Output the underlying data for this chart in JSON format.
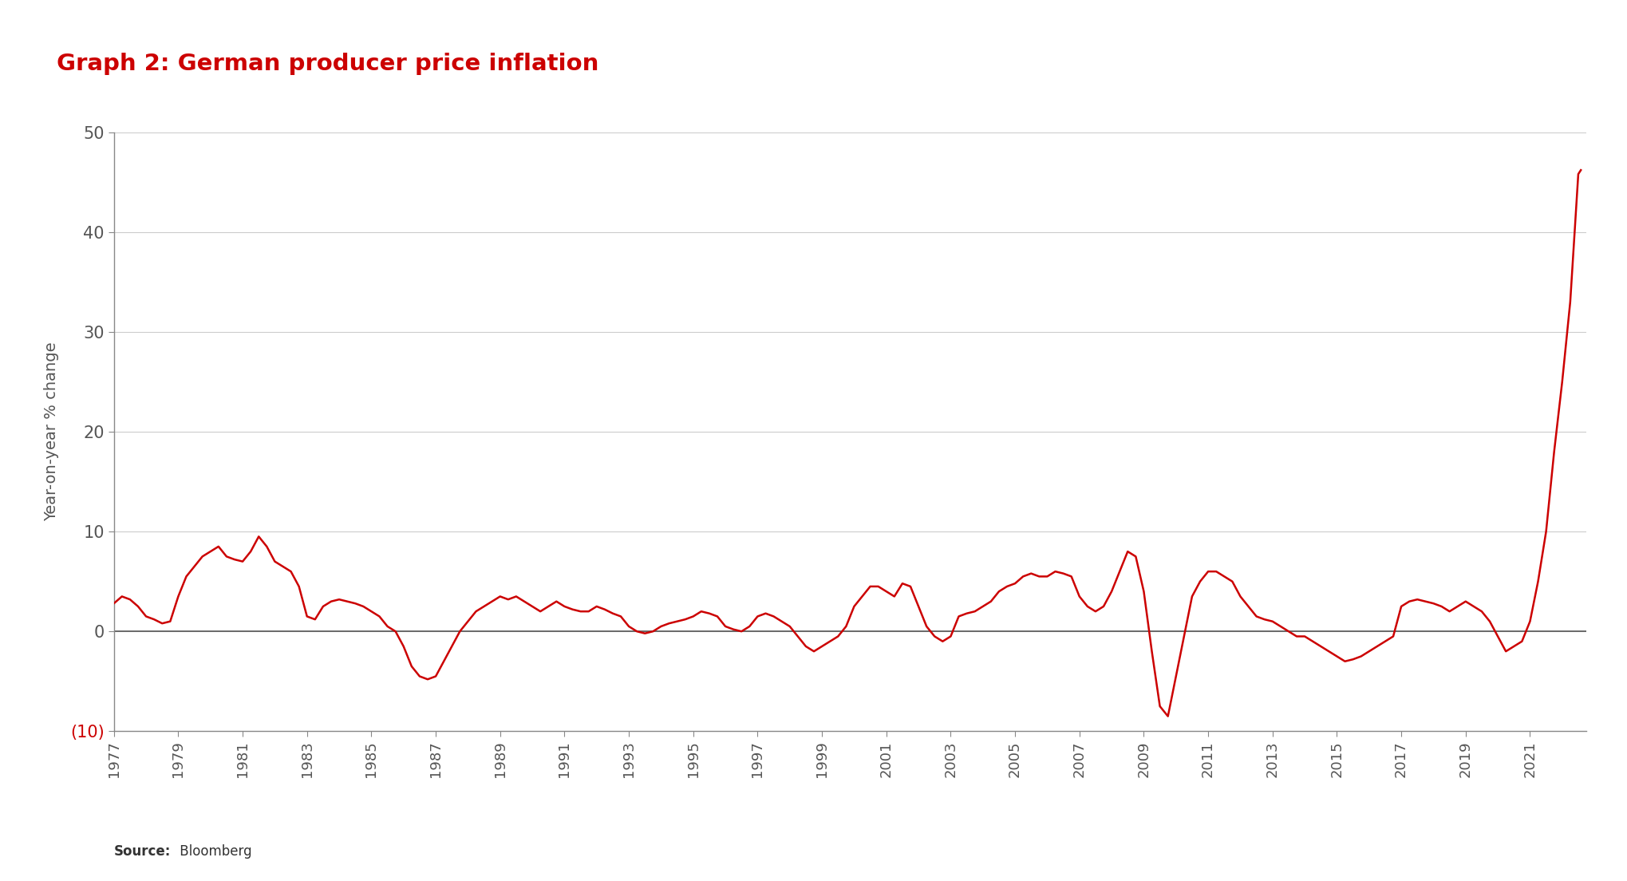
{
  "title": "Graph 2: German producer price inflation",
  "ylabel": "Year-on-year % change",
  "source_bold": "Source:",
  "source_regular": " Bloomberg",
  "line_color": "#cc0000",
  "background_color": "#ffffff",
  "grid_color": "#cccccc",
  "zero_line_color": "#555555",
  "title_color": "#cc0000",
  "axis_color": "#888888",
  "tick_label_color": "#555555",
  "negative_tick_color": "#cc0000",
  "ylim": [
    -10,
    50
  ],
  "yticks": [
    -10,
    0,
    10,
    20,
    30,
    40,
    50
  ],
  "ytick_labels": [
    "(10)",
    "0",
    "10",
    "20",
    "30",
    "40",
    "50"
  ],
  "data": [
    [
      1977.0,
      2.8
    ],
    [
      1977.25,
      3.5
    ],
    [
      1977.5,
      3.2
    ],
    [
      1977.75,
      2.5
    ],
    [
      1978.0,
      1.5
    ],
    [
      1978.25,
      1.2
    ],
    [
      1978.5,
      0.8
    ],
    [
      1978.75,
      1.0
    ],
    [
      1979.0,
      3.5
    ],
    [
      1979.25,
      5.5
    ],
    [
      1979.5,
      6.5
    ],
    [
      1979.75,
      7.5
    ],
    [
      1980.0,
      8.0
    ],
    [
      1980.25,
      8.5
    ],
    [
      1980.5,
      7.5
    ],
    [
      1980.75,
      7.2
    ],
    [
      1981.0,
      7.0
    ],
    [
      1981.25,
      8.0
    ],
    [
      1981.5,
      9.5
    ],
    [
      1981.75,
      8.5
    ],
    [
      1982.0,
      7.0
    ],
    [
      1982.25,
      6.5
    ],
    [
      1982.5,
      6.0
    ],
    [
      1982.75,
      4.5
    ],
    [
      1983.0,
      1.5
    ],
    [
      1983.25,
      1.2
    ],
    [
      1983.5,
      2.5
    ],
    [
      1983.75,
      3.0
    ],
    [
      1984.0,
      3.2
    ],
    [
      1984.25,
      3.0
    ],
    [
      1984.5,
      2.8
    ],
    [
      1984.75,
      2.5
    ],
    [
      1985.0,
      2.0
    ],
    [
      1985.25,
      1.5
    ],
    [
      1985.5,
      0.5
    ],
    [
      1985.75,
      0.0
    ],
    [
      1986.0,
      -1.5
    ],
    [
      1986.25,
      -3.5
    ],
    [
      1986.5,
      -4.5
    ],
    [
      1986.75,
      -4.8
    ],
    [
      1987.0,
      -4.5
    ],
    [
      1987.25,
      -3.0
    ],
    [
      1987.5,
      -1.5
    ],
    [
      1987.75,
      0.0
    ],
    [
      1988.0,
      1.0
    ],
    [
      1988.25,
      2.0
    ],
    [
      1988.5,
      2.5
    ],
    [
      1988.75,
      3.0
    ],
    [
      1989.0,
      3.5
    ],
    [
      1989.25,
      3.2
    ],
    [
      1989.5,
      3.5
    ],
    [
      1989.75,
      3.0
    ],
    [
      1990.0,
      2.5
    ],
    [
      1990.25,
      2.0
    ],
    [
      1990.5,
      2.5
    ],
    [
      1990.75,
      3.0
    ],
    [
      1991.0,
      2.5
    ],
    [
      1991.25,
      2.2
    ],
    [
      1991.5,
      2.0
    ],
    [
      1991.75,
      2.0
    ],
    [
      1992.0,
      2.5
    ],
    [
      1992.25,
      2.2
    ],
    [
      1992.5,
      1.8
    ],
    [
      1992.75,
      1.5
    ],
    [
      1993.0,
      0.5
    ],
    [
      1993.25,
      0.0
    ],
    [
      1993.5,
      -0.2
    ],
    [
      1993.75,
      0.0
    ],
    [
      1994.0,
      0.5
    ],
    [
      1994.25,
      0.8
    ],
    [
      1994.5,
      1.0
    ],
    [
      1994.75,
      1.2
    ],
    [
      1995.0,
      1.5
    ],
    [
      1995.25,
      2.0
    ],
    [
      1995.5,
      1.8
    ],
    [
      1995.75,
      1.5
    ],
    [
      1996.0,
      0.5
    ],
    [
      1996.25,
      0.2
    ],
    [
      1996.5,
      0.0
    ],
    [
      1996.75,
      0.5
    ],
    [
      1997.0,
      1.5
    ],
    [
      1997.25,
      1.8
    ],
    [
      1997.5,
      1.5
    ],
    [
      1997.75,
      1.0
    ],
    [
      1998.0,
      0.5
    ],
    [
      1998.25,
      -0.5
    ],
    [
      1998.5,
      -1.5
    ],
    [
      1998.75,
      -2.0
    ],
    [
      1999.0,
      -1.5
    ],
    [
      1999.25,
      -1.0
    ],
    [
      1999.5,
      -0.5
    ],
    [
      1999.75,
      0.5
    ],
    [
      2000.0,
      2.5
    ],
    [
      2000.25,
      3.5
    ],
    [
      2000.5,
      4.5
    ],
    [
      2000.75,
      4.5
    ],
    [
      2001.0,
      4.0
    ],
    [
      2001.25,
      3.5
    ],
    [
      2001.5,
      4.8
    ],
    [
      2001.75,
      4.5
    ],
    [
      2002.0,
      2.5
    ],
    [
      2002.25,
      0.5
    ],
    [
      2002.5,
      -0.5
    ],
    [
      2002.75,
      -1.0
    ],
    [
      2003.0,
      -0.5
    ],
    [
      2003.25,
      1.5
    ],
    [
      2003.5,
      1.8
    ],
    [
      2003.75,
      2.0
    ],
    [
      2004.0,
      2.5
    ],
    [
      2004.25,
      3.0
    ],
    [
      2004.5,
      4.0
    ],
    [
      2004.75,
      4.5
    ],
    [
      2005.0,
      4.8
    ],
    [
      2005.25,
      5.5
    ],
    [
      2005.5,
      5.8
    ],
    [
      2005.75,
      5.5
    ],
    [
      2006.0,
      5.5
    ],
    [
      2006.25,
      6.0
    ],
    [
      2006.5,
      5.8
    ],
    [
      2006.75,
      5.5
    ],
    [
      2007.0,
      3.5
    ],
    [
      2007.25,
      2.5
    ],
    [
      2007.5,
      2.0
    ],
    [
      2007.75,
      2.5
    ],
    [
      2008.0,
      4.0
    ],
    [
      2008.25,
      6.0
    ],
    [
      2008.5,
      8.0
    ],
    [
      2008.75,
      7.5
    ],
    [
      2009.0,
      4.0
    ],
    [
      2009.25,
      -2.0
    ],
    [
      2009.5,
      -7.5
    ],
    [
      2009.75,
      -8.5
    ],
    [
      2010.0,
      -4.5
    ],
    [
      2010.25,
      -0.5
    ],
    [
      2010.5,
      3.5
    ],
    [
      2010.75,
      5.0
    ],
    [
      2011.0,
      6.0
    ],
    [
      2011.25,
      6.0
    ],
    [
      2011.5,
      5.5
    ],
    [
      2011.75,
      5.0
    ],
    [
      2012.0,
      3.5
    ],
    [
      2012.25,
      2.5
    ],
    [
      2012.5,
      1.5
    ],
    [
      2012.75,
      1.2
    ],
    [
      2013.0,
      1.0
    ],
    [
      2013.25,
      0.5
    ],
    [
      2013.5,
      0.0
    ],
    [
      2013.75,
      -0.5
    ],
    [
      2014.0,
      -0.5
    ],
    [
      2014.25,
      -1.0
    ],
    [
      2014.5,
      -1.5
    ],
    [
      2014.75,
      -2.0
    ],
    [
      2015.0,
      -2.5
    ],
    [
      2015.25,
      -3.0
    ],
    [
      2015.5,
      -2.8
    ],
    [
      2015.75,
      -2.5
    ],
    [
      2016.0,
      -2.0
    ],
    [
      2016.25,
      -1.5
    ],
    [
      2016.5,
      -1.0
    ],
    [
      2016.75,
      -0.5
    ],
    [
      2017.0,
      2.5
    ],
    [
      2017.25,
      3.0
    ],
    [
      2017.5,
      3.2
    ],
    [
      2017.75,
      3.0
    ],
    [
      2018.0,
      2.8
    ],
    [
      2018.25,
      2.5
    ],
    [
      2018.5,
      2.0
    ],
    [
      2018.75,
      2.5
    ],
    [
      2019.0,
      3.0
    ],
    [
      2019.25,
      2.5
    ],
    [
      2019.5,
      2.0
    ],
    [
      2019.75,
      1.0
    ],
    [
      2020.0,
      -0.5
    ],
    [
      2020.25,
      -2.0
    ],
    [
      2020.5,
      -1.5
    ],
    [
      2020.75,
      -1.0
    ],
    [
      2021.0,
      1.0
    ],
    [
      2021.25,
      5.0
    ],
    [
      2021.5,
      10.0
    ],
    [
      2021.75,
      18.0
    ],
    [
      2022.0,
      25.0
    ],
    [
      2022.25,
      33.0
    ],
    [
      2022.5,
      45.8
    ],
    [
      2022.58,
      46.2
    ]
  ]
}
